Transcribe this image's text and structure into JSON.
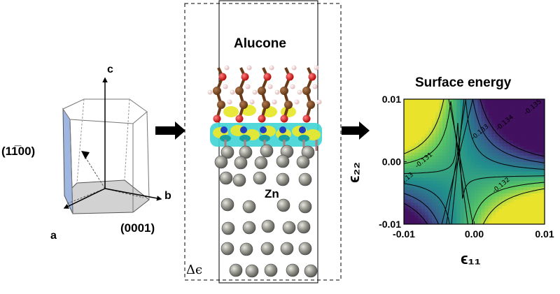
{
  "crystal": {
    "axis_c": "c",
    "axis_b": "b",
    "axis_a": "a",
    "face_prism": "(11̅00)",
    "face_basal": "(0001)"
  },
  "slab": {
    "coating_label": "Alucone",
    "metal_label": "Zn",
    "strain_label": "Δϵ"
  },
  "energy_map": {
    "title": "Surface energy",
    "contour_labels": [
      "-0.135",
      "-0.134",
      "-0.133",
      "-0.132",
      "-0.131",
      "-0.13"
    ]
  },
  "chart_data": {
    "type": "heatmap",
    "title": "Surface energy",
    "xlabel": "ϵ₁₁",
    "ylabel": "ϵ₂₂",
    "x_ticks": [
      "-0.01",
      "0.00",
      "0.01"
    ],
    "y_ticks": [
      "-0.01",
      "0.00",
      "0.01"
    ],
    "xlim": [
      -0.01,
      0.01
    ],
    "ylim": [
      -0.01,
      0.01
    ],
    "contour_levels": [
      -0.135,
      -0.134,
      -0.133,
      -0.132,
      -0.131,
      -0.13
    ],
    "colormap": [
      "#440154",
      "#3b528b",
      "#21908d",
      "#5dc962",
      "#fde725"
    ],
    "value_range": [
      -0.1355,
      -0.1295
    ]
  },
  "colors": {
    "zn_atom": "#8a8a82",
    "carbon": "#7a4a26",
    "oxygen": "#e01010",
    "hydrogen": "#f4d6d6",
    "aluminum": "#3aa0c0",
    "isosurface_yellow": "#e8e830",
    "isosurface_cyan": "#3fd4d4",
    "prism_face": "#9fb6e0",
    "basal_face": "#d0d0d0"
  }
}
